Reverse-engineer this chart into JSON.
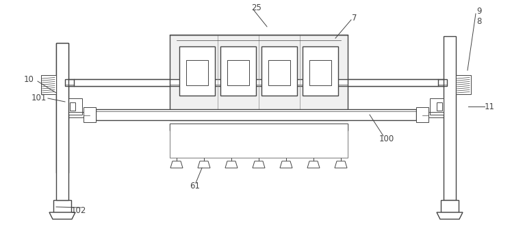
{
  "bg_color": "#ffffff",
  "line_color": "#444444",
  "lw_main": 1.0,
  "lw_thin": 0.7
}
